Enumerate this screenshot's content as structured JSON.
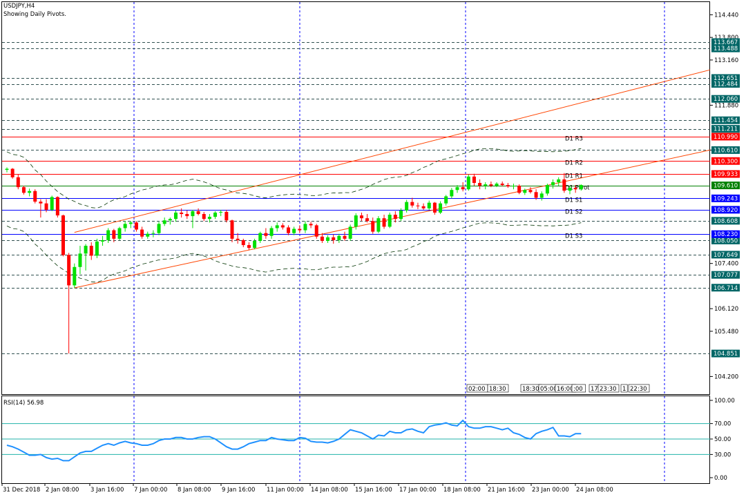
{
  "header": {
    "symbol": "USDJPY,H4",
    "subtitle": "Showing Daily Pivots."
  },
  "rsi_header": {
    "label": "RSI(14) 56.98"
  },
  "colors": {
    "up_candle": "#00e000",
    "down_candle": "#ff0000",
    "pivot_red": "#ff0000",
    "pivot_blue": "#0000ff",
    "pivot_green": "#008000",
    "axis_label_green_bg": "#006666",
    "channel": "#ff4400",
    "ma_band": "#003300",
    "rsi_line": "#1e90ff",
    "rsi_level": "#20b2aa",
    "grid_blue": "#0000ff"
  },
  "chart_data": [
    {
      "type": "candlestick",
      "title": "USDJPY,H4",
      "ylim": [
        103.7,
        114.8
      ],
      "price_ticks": [
        "114.440",
        "113.800",
        "113.160",
        "111.880",
        "110.610",
        "107.400",
        "106.120",
        "105.480",
        "104.200"
      ],
      "x_tick_labels": [
        "31 Dec 2018",
        "2 Jan 08:00",
        "3 Jan 16:00",
        "7 Jan 00:00",
        "8 Jan 08:00",
        "9 Jan 16:00",
        "11 Jan 00:00",
        "14 Jan 08:00",
        "15 Jan 16:00",
        "17 Jan 00:00",
        "18 Jan 08:00",
        "21 Jan 16:00",
        "23 Jan 00:00",
        "24 Jan 08:00"
      ],
      "candles": [
        [
          110.05,
          110.12,
          109.98,
          110.08
        ],
        [
          110.08,
          110.1,
          109.8,
          109.84
        ],
        [
          109.84,
          109.92,
          109.5,
          109.56
        ],
        [
          109.56,
          109.6,
          109.35,
          109.4
        ],
        [
          109.4,
          109.52,
          109.3,
          109.45
        ],
        [
          109.45,
          109.5,
          109.1,
          109.15
        ],
        [
          109.15,
          109.22,
          108.7,
          109.1
        ],
        [
          109.1,
          109.22,
          108.85,
          108.92
        ],
        [
          108.92,
          109.32,
          108.88,
          109.28
        ],
        [
          109.28,
          109.3,
          108.7,
          108.76
        ],
        [
          108.76,
          108.78,
          107.6,
          107.64
        ],
        [
          107.64,
          107.7,
          104.85,
          106.78
        ],
        [
          106.78,
          107.4,
          106.7,
          107.3
        ],
        [
          107.3,
          107.9,
          107.1,
          107.68
        ],
        [
          107.68,
          107.95,
          107.2,
          107.9
        ],
        [
          107.9,
          108.0,
          107.5,
          107.62
        ],
        [
          107.62,
          108.1,
          107.55,
          108.02
        ],
        [
          108.02,
          108.18,
          107.9,
          108.06
        ],
        [
          108.06,
          108.4,
          107.98,
          108.34
        ],
        [
          108.34,
          108.38,
          108.0,
          108.1
        ],
        [
          108.1,
          108.44,
          108.06,
          108.4
        ],
        [
          108.4,
          108.6,
          108.3,
          108.52
        ],
        [
          108.52,
          108.6,
          108.4,
          108.56
        ],
        [
          108.56,
          108.6,
          108.3,
          108.36
        ],
        [
          108.36,
          108.44,
          108.1,
          108.16
        ],
        [
          108.16,
          108.3,
          108.1,
          108.24
        ],
        [
          108.24,
          108.34,
          108.14,
          108.26
        ],
        [
          108.26,
          108.58,
          108.2,
          108.52
        ],
        [
          108.52,
          108.7,
          108.46,
          108.62
        ],
        [
          108.62,
          108.7,
          108.5,
          108.66
        ],
        [
          108.66,
          108.9,
          108.58,
          108.84
        ],
        [
          108.84,
          108.96,
          108.7,
          108.8
        ],
        [
          108.8,
          108.9,
          108.66,
          108.74
        ],
        [
          108.74,
          108.92,
          108.4,
          108.88
        ],
        [
          108.88,
          108.96,
          108.76,
          108.8
        ],
        [
          108.8,
          108.86,
          108.6,
          108.66
        ],
        [
          108.66,
          108.8,
          108.56,
          108.72
        ],
        [
          108.72,
          108.88,
          108.66,
          108.84
        ],
        [
          108.84,
          108.92,
          108.74,
          108.86
        ],
        [
          108.86,
          108.92,
          108.56,
          108.62
        ],
        [
          108.62,
          108.64,
          108.0,
          108.1
        ],
        [
          108.1,
          108.26,
          107.96,
          108.06
        ],
        [
          108.06,
          108.1,
          107.86,
          107.92
        ],
        [
          107.92,
          108.0,
          107.78,
          107.84
        ],
        [
          107.84,
          108.1,
          107.8,
          108.04
        ],
        [
          108.04,
          108.3,
          107.98,
          108.26
        ],
        [
          108.26,
          108.4,
          108.1,
          108.18
        ],
        [
          108.18,
          108.46,
          108.1,
          108.4
        ],
        [
          108.4,
          108.56,
          108.3,
          108.48
        ],
        [
          108.48,
          108.54,
          108.36,
          108.42
        ],
        [
          108.42,
          108.48,
          108.2,
          108.26
        ],
        [
          108.26,
          108.44,
          108.2,
          108.38
        ],
        [
          108.38,
          108.48,
          108.26,
          108.34
        ],
        [
          108.34,
          108.6,
          108.26,
          108.52
        ],
        [
          108.52,
          108.58,
          108.4,
          108.48
        ],
        [
          108.48,
          108.52,
          108.1,
          108.16
        ],
        [
          108.16,
          108.26,
          107.98,
          108.04
        ],
        [
          108.04,
          108.2,
          107.98,
          108.14
        ],
        [
          108.14,
          108.22,
          107.96,
          108.06
        ],
        [
          108.06,
          108.24,
          107.98,
          108.18
        ],
        [
          108.18,
          108.3,
          108.04,
          108.1
        ],
        [
          108.1,
          108.5,
          108.04,
          108.44
        ],
        [
          108.44,
          108.82,
          108.36,
          108.76
        ],
        [
          108.76,
          108.84,
          108.6,
          108.68
        ],
        [
          108.68,
          108.8,
          108.56,
          108.6
        ],
        [
          108.6,
          108.7,
          108.24,
          108.3
        ],
        [
          108.3,
          108.74,
          108.26,
          108.68
        ],
        [
          108.68,
          108.78,
          108.38,
          108.44
        ],
        [
          108.44,
          108.84,
          108.4,
          108.78
        ],
        [
          108.78,
          108.88,
          108.56,
          108.66
        ],
        [
          108.66,
          108.96,
          108.6,
          108.9
        ],
        [
          108.9,
          109.2,
          108.84,
          109.14
        ],
        [
          109.14,
          109.26,
          108.98,
          109.04
        ],
        [
          109.04,
          109.12,
          108.94,
          109.02
        ],
        [
          109.02,
          109.1,
          108.92,
          108.96
        ],
        [
          108.96,
          109.18,
          108.92,
          109.12
        ],
        [
          109.12,
          109.14,
          108.78,
          108.84
        ],
        [
          108.84,
          109.16,
          108.8,
          109.1
        ],
        [
          109.1,
          109.34,
          109.04,
          109.3
        ],
        [
          109.3,
          109.54,
          109.24,
          109.48
        ],
        [
          109.48,
          109.62,
          109.4,
          109.56
        ],
        [
          109.56,
          109.7,
          109.44,
          109.5
        ],
        [
          109.5,
          109.92,
          109.46,
          109.86
        ],
        [
          109.86,
          109.94,
          109.6,
          109.68
        ],
        [
          109.68,
          109.78,
          109.5,
          109.6
        ],
        [
          109.6,
          109.7,
          109.5,
          109.64
        ],
        [
          109.64,
          109.72,
          109.56,
          109.6
        ],
        [
          109.6,
          109.7,
          109.56,
          109.66
        ],
        [
          109.66,
          109.72,
          109.58,
          109.62
        ],
        [
          109.62,
          109.68,
          109.54,
          109.58
        ],
        [
          109.58,
          109.66,
          109.5,
          109.6
        ],
        [
          109.6,
          109.64,
          109.36,
          109.4
        ],
        [
          109.4,
          109.52,
          109.34,
          109.48
        ],
        [
          109.48,
          109.56,
          109.38,
          109.42
        ],
        [
          109.42,
          109.5,
          109.2,
          109.26
        ],
        [
          109.26,
          109.44,
          109.18,
          109.38
        ],
        [
          109.38,
          109.66,
          109.32,
          109.62
        ],
        [
          109.62,
          109.78,
          109.52,
          109.7
        ],
        [
          109.7,
          109.84,
          109.6,
          109.78
        ],
        [
          109.78,
          109.96,
          109.4,
          109.46
        ],
        [
          109.46,
          109.6,
          109.36,
          109.54
        ],
        [
          109.54,
          109.62,
          109.4,
          109.5
        ],
        [
          109.5,
          109.64,
          109.46,
          109.62
        ]
      ]
    },
    {
      "type": "line",
      "title": "RSI(14) 56.98",
      "ylim": [
        0,
        100
      ],
      "levels": [
        30,
        50,
        70
      ],
      "y_tick_labels": [
        "100.00",
        "70.00",
        "50.00",
        "30.00",
        "0.00"
      ],
      "series": [
        {
          "values": [
            42,
            40,
            37,
            33,
            29,
            29,
            30,
            26,
            24,
            25,
            22,
            22,
            27,
            32,
            34,
            34,
            38,
            42,
            44,
            42,
            45,
            47,
            45,
            44,
            42,
            42,
            44,
            48,
            50,
            50,
            52,
            52,
            50,
            50,
            52,
            53,
            53,
            50,
            45,
            40,
            37,
            37,
            40,
            44,
            46,
            48,
            48,
            52,
            50,
            49,
            48,
            48,
            52,
            51,
            47,
            46,
            46,
            45,
            47,
            50,
            56,
            62,
            60,
            58,
            54,
            50,
            55,
            54,
            60,
            58,
            58,
            62,
            63,
            60,
            58,
            66,
            68,
            69,
            71,
            68,
            67,
            74,
            66,
            64,
            64,
            66,
            66,
            64,
            62,
            64,
            58,
            56,
            52,
            50,
            57,
            60,
            62,
            65,
            54,
            54,
            53,
            57,
            57
          ]
        }
      ]
    }
  ],
  "pivots": [
    {
      "label": "D1 R3",
      "value": "110.990",
      "color": "#ff0000"
    },
    {
      "label": "D1 R2",
      "value": "110.300",
      "color": "#ff0000"
    },
    {
      "label": "D1 R1",
      "value": "109.933",
      "color": "#ff0000"
    },
    {
      "label": "D1 Pivot",
      "value": "109.610",
      "color": "#008000"
    },
    {
      "label": "D1 S1",
      "value": "109.243",
      "color": "#0000ff"
    },
    {
      "label": "D1 S2",
      "value": "108.920",
      "color": "#0000ff"
    },
    {
      "label": "D1 S3",
      "value": "108.230",
      "color": "#0000ff"
    }
  ],
  "dashed_levels": [
    "113.667",
    "113.488",
    "112.651",
    "112.484",
    "112.060",
    "111.454",
    "111.211",
    "110.610",
    "108.608",
    "108.050",
    "107.649",
    "107.077",
    "106.714",
    "104.851"
  ],
  "session_marks": [
    "02:00",
    "18:30",
    "18:30",
    "05:00",
    "16:00",
    ":00",
    "17",
    "23:30",
    "1",
    "22:30"
  ]
}
